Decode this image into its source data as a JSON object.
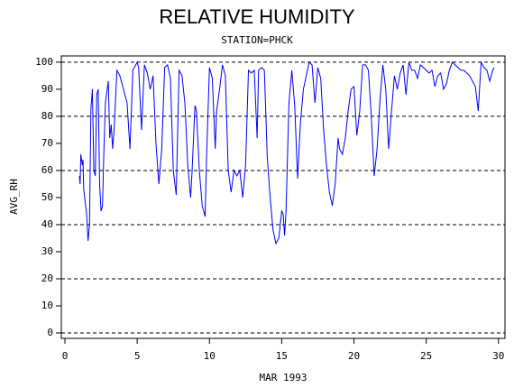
{
  "chart_data": {
    "type": "line",
    "title": "RELATIVE HUMIDITY",
    "subtitle": "STATION=PHCK",
    "x_label": "MAR 1993",
    "y_label": "AVG_RH",
    "x": [
      1.0,
      1.05,
      1.1,
      1.2,
      1.25,
      1.3,
      1.5,
      1.6,
      1.7,
      1.8,
      1.9,
      2.0,
      2.1,
      2.2,
      2.3,
      2.4,
      2.5,
      2.6,
      2.7,
      2.8,
      3.0,
      3.1,
      3.2,
      3.3,
      3.4,
      3.6,
      3.8,
      4.0,
      4.3,
      4.5,
      4.7,
      5.0,
      5.1,
      5.3,
      5.5,
      5.7,
      5.9,
      6.1,
      6.3,
      6.5,
      6.7,
      6.9,
      7.1,
      7.3,
      7.5,
      7.7,
      7.9,
      8.1,
      8.3,
      8.5,
      8.7,
      8.8,
      9.0,
      9.1,
      9.3,
      9.5,
      9.7,
      9.8,
      10.0,
      10.2,
      10.4,
      10.5,
      10.7,
      10.9,
      11.1,
      11.3,
      11.5,
      11.7,
      11.9,
      12.1,
      12.3,
      12.5,
      12.7,
      12.9,
      13.1,
      13.3,
      13.4,
      13.6,
      13.8,
      14.0,
      14.2,
      14.4,
      14.6,
      14.8,
      15.0,
      15.1,
      15.2,
      15.3,
      15.5,
      15.7,
      15.9,
      16.1,
      16.3,
      16.5,
      16.7,
      16.9,
      17.1,
      17.3,
      17.5,
      17.7,
      17.9,
      18.1,
      18.3,
      18.5,
      18.7,
      18.9,
      19.0,
      19.2,
      19.4,
      19.6,
      19.8,
      20.0,
      20.2,
      20.4,
      20.6,
      20.8,
      21.0,
      21.2,
      21.4,
      21.6,
      21.8,
      22.0,
      22.2,
      22.4,
      22.6,
      22.8,
      23.0,
      23.2,
      23.4,
      23.6,
      23.8,
      24.0,
      24.2,
      24.4,
      24.6,
      24.8,
      25.0,
      25.2,
      25.4,
      25.6,
      25.8,
      26.0,
      26.2,
      26.4,
      26.6,
      26.8,
      27.0,
      27.2,
      27.4,
      27.6,
      27.8,
      28.0,
      28.2,
      28.4,
      28.6,
      28.8,
      29.0,
      29.2,
      29.4,
      29.6,
      29.7
    ],
    "series": [
      {
        "color": "#0000ff",
        "values": [
          58,
          55,
          66,
          62,
          64,
          53,
          44,
          34,
          40,
          83,
          90,
          60,
          58,
          88,
          90,
          55,
          45,
          47,
          68,
          85,
          93,
          72,
          77,
          68,
          75,
          97,
          95,
          91,
          85,
          68,
          97,
          100,
          98,
          75,
          99,
          96,
          90,
          95,
          70,
          55,
          68,
          98,
          99,
          94,
          60,
          51,
          97,
          95,
          85,
          62,
          50,
          60,
          84,
          82,
          60,
          47,
          43,
          65,
          98,
          94,
          68,
          82,
          90,
          99,
          95,
          60,
          52,
          60,
          58,
          60,
          50,
          62,
          97,
          96,
          97,
          72,
          97,
          98,
          97,
          65,
          50,
          38,
          33,
          35,
          45,
          44,
          36,
          45,
          85,
          97,
          84,
          57,
          78,
          90,
          95,
          100,
          99,
          85,
          98,
          94,
          75,
          62,
          52,
          47,
          55,
          72,
          68,
          66,
          72,
          82,
          90,
          91,
          73,
          82,
          99,
          99,
          97,
          80,
          58,
          68,
          86,
          99,
          90,
          68,
          82,
          95,
          90,
          96,
          99,
          88,
          100,
          97,
          97,
          94,
          99,
          98,
          97,
          96,
          97,
          91,
          95,
          96,
          90,
          92,
          97,
          100,
          99,
          98,
          97,
          97,
          96,
          95,
          93,
          91,
          82,
          100,
          98,
          97,
          93,
          97,
          98
        ]
      }
    ],
    "xlim": [
      -0.25,
      30.45
    ],
    "ylim": [
      -2,
      102.3
    ],
    "xticks": [
      0,
      5,
      10,
      15,
      20,
      25,
      30
    ],
    "yticks": [
      0,
      10,
      20,
      30,
      40,
      50,
      60,
      70,
      80,
      90,
      100
    ],
    "grid": true
  }
}
